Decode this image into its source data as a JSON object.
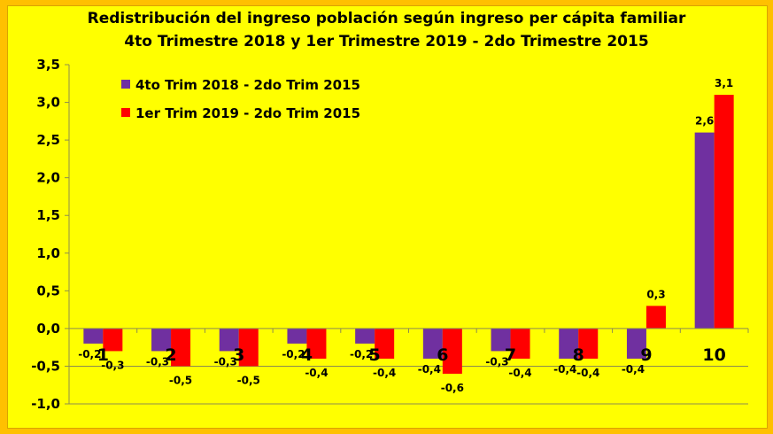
{
  "chart_data": {
    "type": "bar",
    "title": [
      "Redistribución del ingreso población según ingreso per cápita familiar",
      "4to Trimestre 2018 y 1er Trimestre 2019 - 2do Trimestre 2015"
    ],
    "categories": [
      "1",
      "2",
      "3",
      "4",
      "5",
      "6",
      "7",
      "8",
      "9",
      "10"
    ],
    "series": [
      {
        "name": "4to Trim 2018 - 2do Trim 2015",
        "color": "#7030A0",
        "values": [
          -0.2,
          -0.3,
          -0.3,
          -0.2,
          -0.2,
          -0.4,
          -0.3,
          -0.4,
          -0.4,
          2.6
        ]
      },
      {
        "name": "1er Trim 2019 - 2do Trim 2015",
        "color": "#FF0000",
        "values": [
          -0.3,
          -0.5,
          -0.5,
          -0.4,
          -0.4,
          -0.6,
          -0.4,
          -0.4,
          0.3,
          3.1
        ]
      }
    ],
    "ylim": [
      -1.0,
      3.5
    ],
    "yticks": [
      "-1,0",
      "-0,5",
      "0,0",
      "0,5",
      "1,0",
      "1,5",
      "2,0",
      "2,5",
      "3,0",
      "3,5"
    ],
    "legend": "top-left",
    "background": "#FFFF00",
    "border": "#FFC000"
  }
}
